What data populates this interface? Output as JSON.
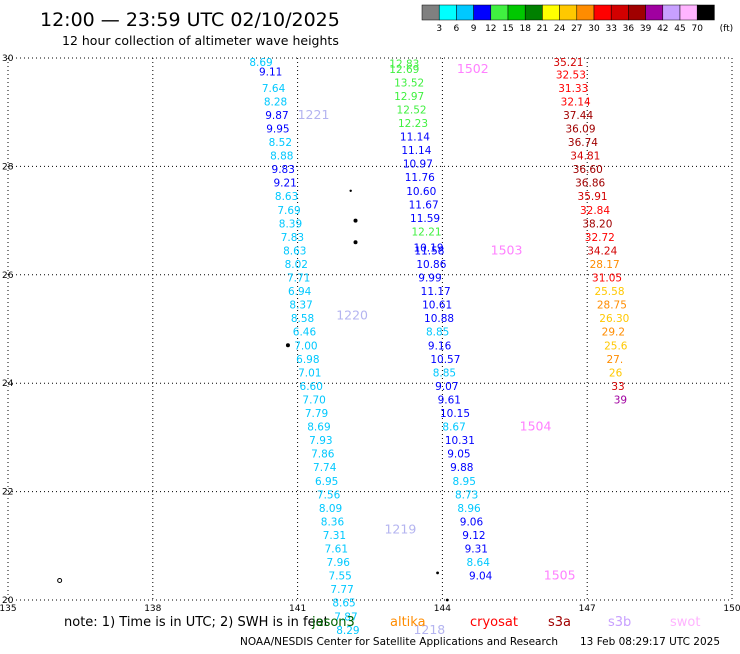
{
  "chart_data": {
    "type": "scatter",
    "title": "12:00 — 23:59 UTC 02/10/2025",
    "subtitle": "12 hour collection of altimeter wave heights",
    "xlim": [
      135,
      150
    ],
    "ylim": [
      20,
      30
    ],
    "x_ticks": [
      "135",
      "138",
      "141",
      "144",
      "147",
      "150"
    ],
    "y_ticks": [
      "30",
      "28",
      "26",
      "24",
      "22",
      "20"
    ],
    "grid": "dotted",
    "color_scale": {
      "unit_label": "(ft)",
      "labels": [
        "3",
        "6",
        "9",
        "12",
        "15",
        "18",
        "21",
        "24",
        "27",
        "30",
        "33",
        "36",
        "39",
        "42",
        "45",
        "70"
      ],
      "colors": [
        "#808080",
        "#00ffff",
        "#00c8ff",
        "#0000ff",
        "#40f040",
        "#00c800",
        "#008000",
        "#ffff00",
        "#ffc800",
        "#ff8c00",
        "#ff0000",
        "#d20000",
        "#a00000",
        "#a000a0",
        "#c8a0ff",
        "#ffb4ff",
        "#000000"
      ]
    },
    "tracks": [
      {
        "points": [
          [
            140.0,
            29.93,
            "8.69"
          ],
          [
            140.2,
            29.75,
            "9.11"
          ],
          [
            140.26,
            29.45,
            "7.64"
          ],
          [
            140.3,
            29.2,
            "8.28"
          ],
          [
            140.33,
            28.95,
            "9.87"
          ],
          [
            140.35,
            28.7,
            "9.95"
          ],
          [
            140.4,
            28.45,
            "8.52"
          ],
          [
            140.43,
            28.2,
            "8.88"
          ],
          [
            140.46,
            27.95,
            "9.83"
          ],
          [
            140.5,
            27.7,
            "9.21"
          ],
          [
            140.53,
            27.45,
            "8.63"
          ],
          [
            140.58,
            27.2,
            "7.69"
          ],
          [
            140.61,
            26.95,
            "8.39"
          ],
          [
            140.65,
            26.7,
            "7.83"
          ],
          [
            140.7,
            26.45,
            "8.63"
          ],
          [
            140.73,
            26.2,
            "8.02"
          ],
          [
            140.78,
            25.95,
            "7.71"
          ],
          [
            140.8,
            25.7,
            "6.94"
          ],
          [
            140.83,
            25.45,
            "8.37"
          ],
          [
            140.86,
            25.2,
            "8.58"
          ],
          [
            140.9,
            24.95,
            "6.46"
          ],
          [
            140.93,
            24.7,
            "7.00"
          ],
          [
            140.97,
            24.45,
            "6.98"
          ],
          [
            141.01,
            24.2,
            "7.01"
          ],
          [
            141.04,
            23.95,
            "6.60"
          ],
          [
            141.1,
            23.7,
            "7.70"
          ],
          [
            141.15,
            23.45,
            "7.79"
          ],
          [
            141.2,
            23.2,
            "8.69"
          ],
          [
            141.24,
            22.95,
            "7.93"
          ],
          [
            141.28,
            22.7,
            "7.86"
          ],
          [
            141.32,
            22.45,
            "7.74"
          ],
          [
            141.36,
            22.2,
            "6.95"
          ],
          [
            141.4,
            21.95,
            "7.56"
          ],
          [
            141.44,
            21.7,
            "8.09"
          ],
          [
            141.48,
            21.45,
            "8.36"
          ],
          [
            141.52,
            21.2,
            "7.31"
          ],
          [
            141.56,
            20.95,
            "7.61"
          ],
          [
            141.6,
            20.7,
            "7.96"
          ],
          [
            141.64,
            20.45,
            "7.55"
          ],
          [
            141.68,
            20.2,
            "7.77"
          ],
          [
            141.72,
            19.95,
            "8.65"
          ],
          [
            141.76,
            19.7,
            "7.87"
          ],
          [
            141.8,
            19.45,
            "8.29"
          ]
        ],
        "passes": [
          {
            "label": "1221",
            "x": 141.0,
            "y": 28.95
          },
          {
            "label": "1220",
            "x": 141.8,
            "y": 25.25
          },
          {
            "label": "1219",
            "x": 142.8,
            "y": 21.3
          },
          {
            "label": "1218",
            "x": 143.4,
            "y": 19.45
          }
        ]
      },
      {
        "points": [
          [
            142.9,
            29.9,
            "12.83"
          ],
          [
            142.9,
            29.8,
            "12.69"
          ],
          [
            143.0,
            29.55,
            "13.52"
          ],
          [
            143.0,
            29.3,
            "12.97"
          ],
          [
            143.05,
            29.05,
            "12.52"
          ],
          [
            143.08,
            28.8,
            "12.23"
          ],
          [
            143.12,
            28.55,
            "11.14"
          ],
          [
            143.15,
            28.3,
            "11.14"
          ],
          [
            143.18,
            28.05,
            "10.97"
          ],
          [
            143.22,
            27.8,
            "11.76"
          ],
          [
            143.25,
            27.55,
            "10.60"
          ],
          [
            143.3,
            27.3,
            "11.67"
          ],
          [
            143.33,
            27.05,
            "11.59"
          ],
          [
            143.36,
            26.8,
            "12.21"
          ],
          [
            143.4,
            26.5,
            "10.19"
          ],
          [
            143.42,
            26.45,
            "11.58"
          ],
          [
            143.46,
            26.2,
            "10.86"
          ],
          [
            143.5,
            25.95,
            "9.99"
          ],
          [
            143.55,
            25.7,
            "11.17"
          ],
          [
            143.58,
            25.45,
            "10.61"
          ],
          [
            143.62,
            25.2,
            "10.88"
          ],
          [
            143.66,
            24.95,
            "8.85"
          ],
          [
            143.7,
            24.7,
            "9.16"
          ],
          [
            143.75,
            24.45,
            "10.57"
          ],
          [
            143.8,
            24.2,
            "8.85"
          ],
          [
            143.85,
            23.95,
            "9.07"
          ],
          [
            143.9,
            23.7,
            "9.61"
          ],
          [
            143.95,
            23.45,
            "10.15"
          ],
          [
            144.0,
            23.2,
            "8.67"
          ],
          [
            144.05,
            22.95,
            "10.31"
          ],
          [
            144.1,
            22.7,
            "9.05"
          ],
          [
            144.16,
            22.45,
            "9.88"
          ],
          [
            144.21,
            22.2,
            "8.95"
          ],
          [
            144.26,
            21.95,
            "8.73"
          ],
          [
            144.31,
            21.7,
            "8.96"
          ],
          [
            144.36,
            21.45,
            "9.06"
          ],
          [
            144.41,
            21.2,
            "9.12"
          ],
          [
            144.46,
            20.95,
            "9.31"
          ],
          [
            144.5,
            20.7,
            "8.64"
          ],
          [
            144.55,
            20.45,
            "9.04"
          ]
        ],
        "passes": [
          {
            "label": "1502",
            "x": 144.3,
            "y": 29.8
          },
          {
            "label": "1503",
            "x": 145.0,
            "y": 26.45
          },
          {
            "label": "1504",
            "x": 145.6,
            "y": 23.2
          },
          {
            "label": "1505",
            "x": 146.1,
            "y": 20.45
          }
        ]
      },
      {
        "points": [
          [
            146.3,
            29.93,
            "35.21"
          ],
          [
            146.35,
            29.7,
            "32.53"
          ],
          [
            146.4,
            29.45,
            "31.33"
          ],
          [
            146.45,
            29.2,
            "32.14"
          ],
          [
            146.5,
            28.95,
            "37.44"
          ],
          [
            146.55,
            28.7,
            "36.09"
          ],
          [
            146.6,
            28.45,
            "36.74"
          ],
          [
            146.65,
            28.2,
            "34.81"
          ],
          [
            146.7,
            27.95,
            "36.60"
          ],
          [
            146.75,
            27.7,
            "36.86"
          ],
          [
            146.8,
            27.45,
            "35.91"
          ],
          [
            146.85,
            27.2,
            "32.84"
          ],
          [
            146.9,
            26.95,
            "38.20"
          ],
          [
            146.95,
            26.7,
            "32.72"
          ],
          [
            147.0,
            26.45,
            "34.24"
          ],
          [
            147.05,
            26.2,
            "28.17"
          ],
          [
            147.1,
            25.95,
            "31.05"
          ],
          [
            147.15,
            25.7,
            "25.58"
          ],
          [
            147.2,
            25.45,
            "28.75"
          ],
          [
            147.25,
            25.2,
            "26.30"
          ],
          [
            147.3,
            24.95,
            "29.2"
          ],
          [
            147.35,
            24.7,
            "25.6"
          ],
          [
            147.4,
            24.45,
            "27."
          ],
          [
            147.45,
            24.2,
            "26"
          ],
          [
            147.5,
            23.95,
            "33"
          ],
          [
            147.55,
            23.7,
            "39"
          ]
        ],
        "passes": []
      }
    ],
    "note": "note: 1) Time is in UTC; 2) SWH is in feet",
    "legend": [
      {
        "label": "jason3",
        "color": "#006400"
      },
      {
        "label": "altika",
        "color": "#ff8c00"
      },
      {
        "label": "cryosat",
        "color": "#ff0000"
      },
      {
        "label": "s3a",
        "color": "#a00000"
      },
      {
        "label": "s3b",
        "color": "#c8a0ff"
      },
      {
        "label": "swot",
        "color": "#ffb4ff"
      }
    ],
    "credit_left": "NOAA/NESDIS Center for Satellite Applications and Research",
    "credit_right": "13 Feb 08:29:17 UTC 2025"
  }
}
